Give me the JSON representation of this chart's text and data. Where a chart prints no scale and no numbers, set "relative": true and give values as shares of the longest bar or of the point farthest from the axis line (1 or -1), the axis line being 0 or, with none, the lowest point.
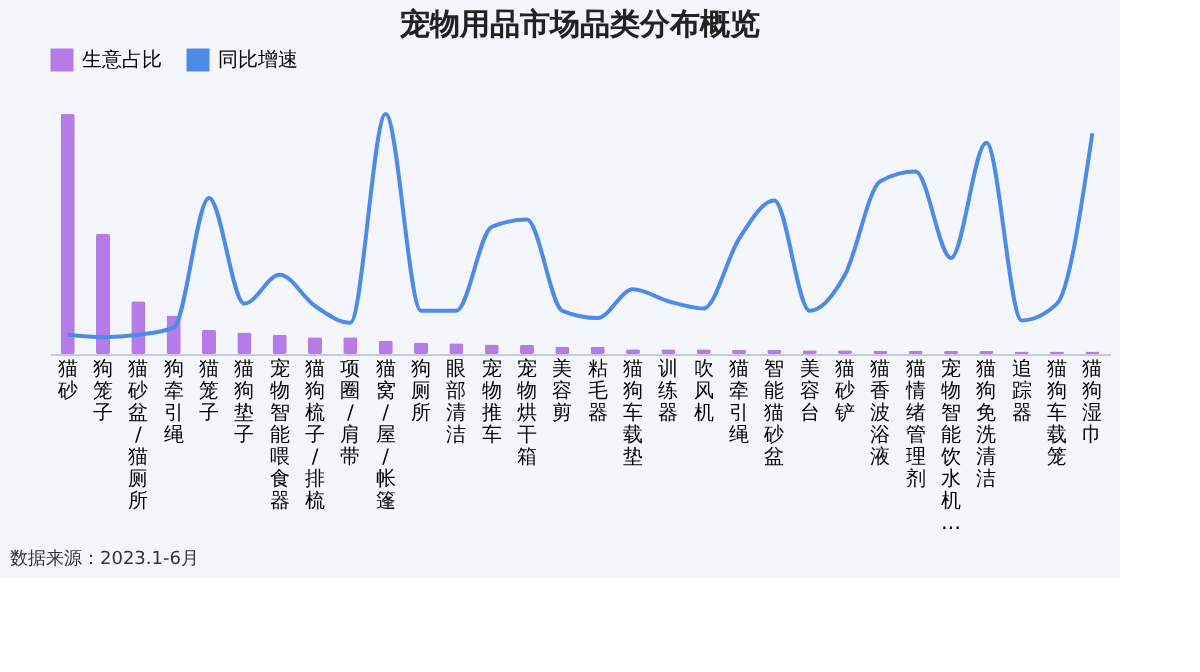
{
  "chart_data": {
    "type": "bar",
    "title": "宠物用品市场品类分布概览",
    "relative": true,
    "grid": false,
    "legend": "top",
    "categories": [
      "猫砂",
      "狗笼子",
      "猫砂盆/猫厕所",
      "狗牵引绳",
      "猫笼子",
      "猫狗垫子",
      "宠物智能喂食器",
      "猫狗梳子/排梳",
      "项圈/肩带",
      "猫窝/屋/帐篷",
      "狗厕所",
      "眼部清洁",
      "宠物推车",
      "宠物烘干箱",
      "美容剪",
      "粘毛器",
      "猫狗车载垫",
      "训练器",
      "吹风机",
      "猫牵引绳",
      "智能猫砂盆",
      "美容台",
      "猫砂铲",
      "猫香波浴液",
      "猫情绪管理剂",
      "宠物智能饮水机…",
      "猫狗免洗清洁",
      "追踪器",
      "猫狗车载笼",
      "猫狗湿巾"
    ],
    "series": [
      {
        "name": "生意占比",
        "color": "#b57be8",
        "values": [
          1,
          0.5,
          0.22,
          0.16,
          0.1,
          0.09,
          0.08,
          0.07,
          0.07,
          0.055,
          0.047,
          0.045,
          0.04,
          0.038,
          0.03,
          0.03,
          0.02,
          0.02,
          0.02,
          0.018,
          0.018,
          0.016,
          0.016,
          0.014,
          0.014,
          0.012,
          0.012,
          0.01,
          0.01,
          0.01
        ]
      },
      {
        "name": "同比增速",
        "type": "line",
        "color": "#4d8ce6",
        "values": [
          0.08,
          0.07,
          0.08,
          0.11,
          0.65,
          0.21,
          0.33,
          0.2,
          0.13,
          1,
          0.18,
          0.18,
          0.53,
          0.56,
          0.18,
          0.15,
          0.27,
          0.22,
          0.19,
          0.48,
          0.64,
          0.18,
          0.33,
          0.72,
          0.76,
          0.4,
          0.88,
          0.14,
          0.21,
          0.92
        ]
      }
    ],
    "annotations": [
      "数据来源：2023.1-6月"
    ]
  }
}
